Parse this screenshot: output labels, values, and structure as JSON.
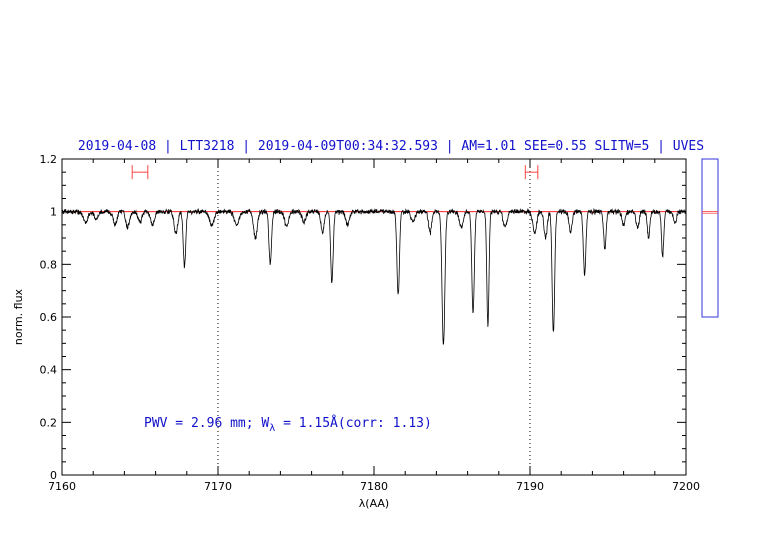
{
  "chart_data": {
    "type": "line",
    "title": "2019-04-08 | LTT3218 | 2019-04-09T00:34:32.593 | AM=1.01 SEE=0.55 SLITW=5 | UVES",
    "xlabel": "λ(AA)",
    "ylabel": "norm. flux",
    "xlim": [
      7160,
      7200
    ],
    "ylim": [
      0,
      1.2
    ],
    "xticks": [
      "7160",
      "7170",
      "7180",
      "7190",
      "7200"
    ],
    "yticks": [
      "0",
      "0.2",
      "0.4",
      "0.6",
      "0.8",
      "1",
      "1.2"
    ],
    "annotation": {
      "prefix": "PWV = 2.96 mm; W",
      "subscript": "λ",
      "suffix": " = 1.15Å(corr: 1.13)"
    },
    "continuum_level": 1.0,
    "vertical_markers": [
      7170,
      7190
    ],
    "range_markers": [
      {
        "x1": 7164.5,
        "x2": 7165.5,
        "y": 1.15
      },
      {
        "x1": 7189.7,
        "x2": 7190.5,
        "y": 1.15
      }
    ],
    "side_panel": {
      "ymin": 0.6,
      "ymax": 1.2,
      "level": 1.0
    },
    "series": [
      {
        "color": "#000000",
        "absorption_lines": [
          [
            7161.5,
            0.04,
            0.15
          ],
          [
            7162.2,
            0.03,
            0.12
          ],
          [
            7163.4,
            0.05,
            0.12
          ],
          [
            7164.2,
            0.06,
            0.12
          ],
          [
            7165.0,
            0.04,
            0.12
          ],
          [
            7165.8,
            0.05,
            0.12
          ],
          [
            7167.3,
            0.08,
            0.12
          ],
          [
            7167.85,
            0.21,
            0.08
          ],
          [
            7169.6,
            0.05,
            0.15
          ],
          [
            7171.2,
            0.05,
            0.15
          ],
          [
            7172.4,
            0.1,
            0.12
          ],
          [
            7173.35,
            0.2,
            0.08
          ],
          [
            7174.4,
            0.06,
            0.12
          ],
          [
            7175.5,
            0.04,
            0.12
          ],
          [
            7176.7,
            0.08,
            0.1
          ],
          [
            7177.3,
            0.27,
            0.08
          ],
          [
            7178.3,
            0.05,
            0.12
          ],
          [
            7181.55,
            0.32,
            0.08
          ],
          [
            7182.5,
            0.04,
            0.12
          ],
          [
            7183.6,
            0.08,
            0.1
          ],
          [
            7184.45,
            0.51,
            0.09
          ],
          [
            7185.6,
            0.06,
            0.12
          ],
          [
            7186.35,
            0.38,
            0.08
          ],
          [
            7187.3,
            0.43,
            0.07
          ],
          [
            7188.4,
            0.06,
            0.12
          ],
          [
            7190.3,
            0.08,
            0.12
          ],
          [
            7191.0,
            0.1,
            0.1
          ],
          [
            7191.5,
            0.46,
            0.08
          ],
          [
            7192.6,
            0.08,
            0.1
          ],
          [
            7193.5,
            0.24,
            0.08
          ],
          [
            7194.8,
            0.14,
            0.08
          ],
          [
            7196.0,
            0.05,
            0.1
          ],
          [
            7196.9,
            0.06,
            0.1
          ],
          [
            7197.6,
            0.1,
            0.08
          ],
          [
            7198.5,
            0.17,
            0.07
          ],
          [
            7199.3,
            0.04,
            0.1
          ]
        ],
        "noise": 0.008
      },
      {
        "color": "#ff0000",
        "values": [
          [
            7160,
            1.0
          ],
          [
            7200,
            1.0
          ]
        ]
      }
    ]
  }
}
